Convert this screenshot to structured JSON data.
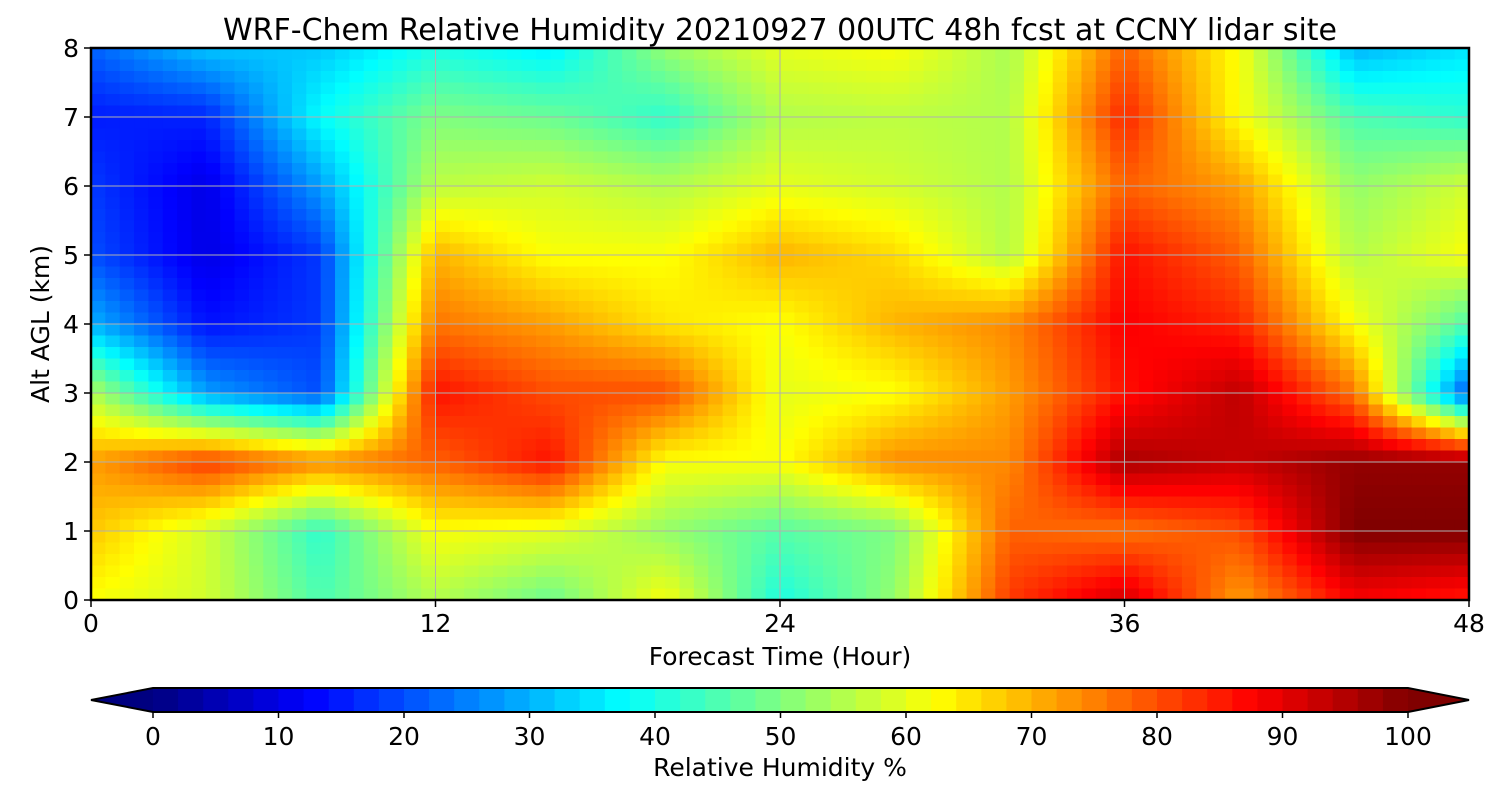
{
  "chart_data": {
    "type": "heatmap",
    "title": "WRF-Chem Relative Humidity 20210927 00UTC 48h fcst at CCNY lidar site",
    "xlabel": "Forecast Time (Hour)",
    "ylabel": "Alt AGL (km)",
    "xlim": [
      0,
      48
    ],
    "ylim": [
      0,
      8
    ],
    "x_ticks": [
      "0",
      "12",
      "24",
      "36",
      "48"
    ],
    "y_ticks": [
      "0",
      "1",
      "2",
      "3",
      "4",
      "5",
      "6",
      "7",
      "8"
    ],
    "grid": true,
    "colorbar": {
      "label": "Relative Humidity %",
      "range": [
        0,
        100
      ],
      "extend": "both",
      "colormap": "jet",
      "ticks": [
        "0",
        "10",
        "20",
        "30",
        "40",
        "50",
        "60",
        "70",
        "80",
        "90",
        "100"
      ]
    },
    "grid_x_hours": [
      0,
      4,
      8,
      12,
      16,
      20,
      24,
      28,
      32,
      36,
      40,
      44,
      48
    ],
    "grid_y_km": [
      0,
      1,
      2,
      3,
      4,
      5,
      6,
      7,
      8
    ],
    "values_rh_percent": [
      [
        62,
        58,
        45,
        55,
        48,
        62,
        40,
        52,
        82,
        92,
        72,
        88,
        85
      ],
      [
        68,
        58,
        42,
        62,
        60,
        52,
        46,
        50,
        78,
        76,
        80,
        100,
        100
      ],
      [
        72,
        82,
        74,
        78,
        86,
        62,
        62,
        74,
        74,
        96,
        93,
        98,
        98
      ],
      [
        55,
        28,
        20,
        86,
        80,
        80,
        60,
        62,
        72,
        86,
        94,
        76,
        20
      ],
      [
        30,
        14,
        18,
        76,
        72,
        65,
        62,
        70,
        74,
        88,
        84,
        62,
        45
      ],
      [
        20,
        10,
        18,
        70,
        62,
        62,
        70,
        66,
        55,
        86,
        78,
        55,
        62
      ],
      [
        18,
        10,
        28,
        56,
        58,
        55,
        60,
        58,
        55,
        78,
        72,
        52,
        58
      ],
      [
        15,
        16,
        38,
        50,
        48,
        42,
        55,
        56,
        55,
        84,
        62,
        45,
        42
      ],
      [
        22,
        32,
        32,
        40,
        36,
        52,
        60,
        62,
        54,
        78,
        62,
        30,
        35
      ]
    ]
  }
}
